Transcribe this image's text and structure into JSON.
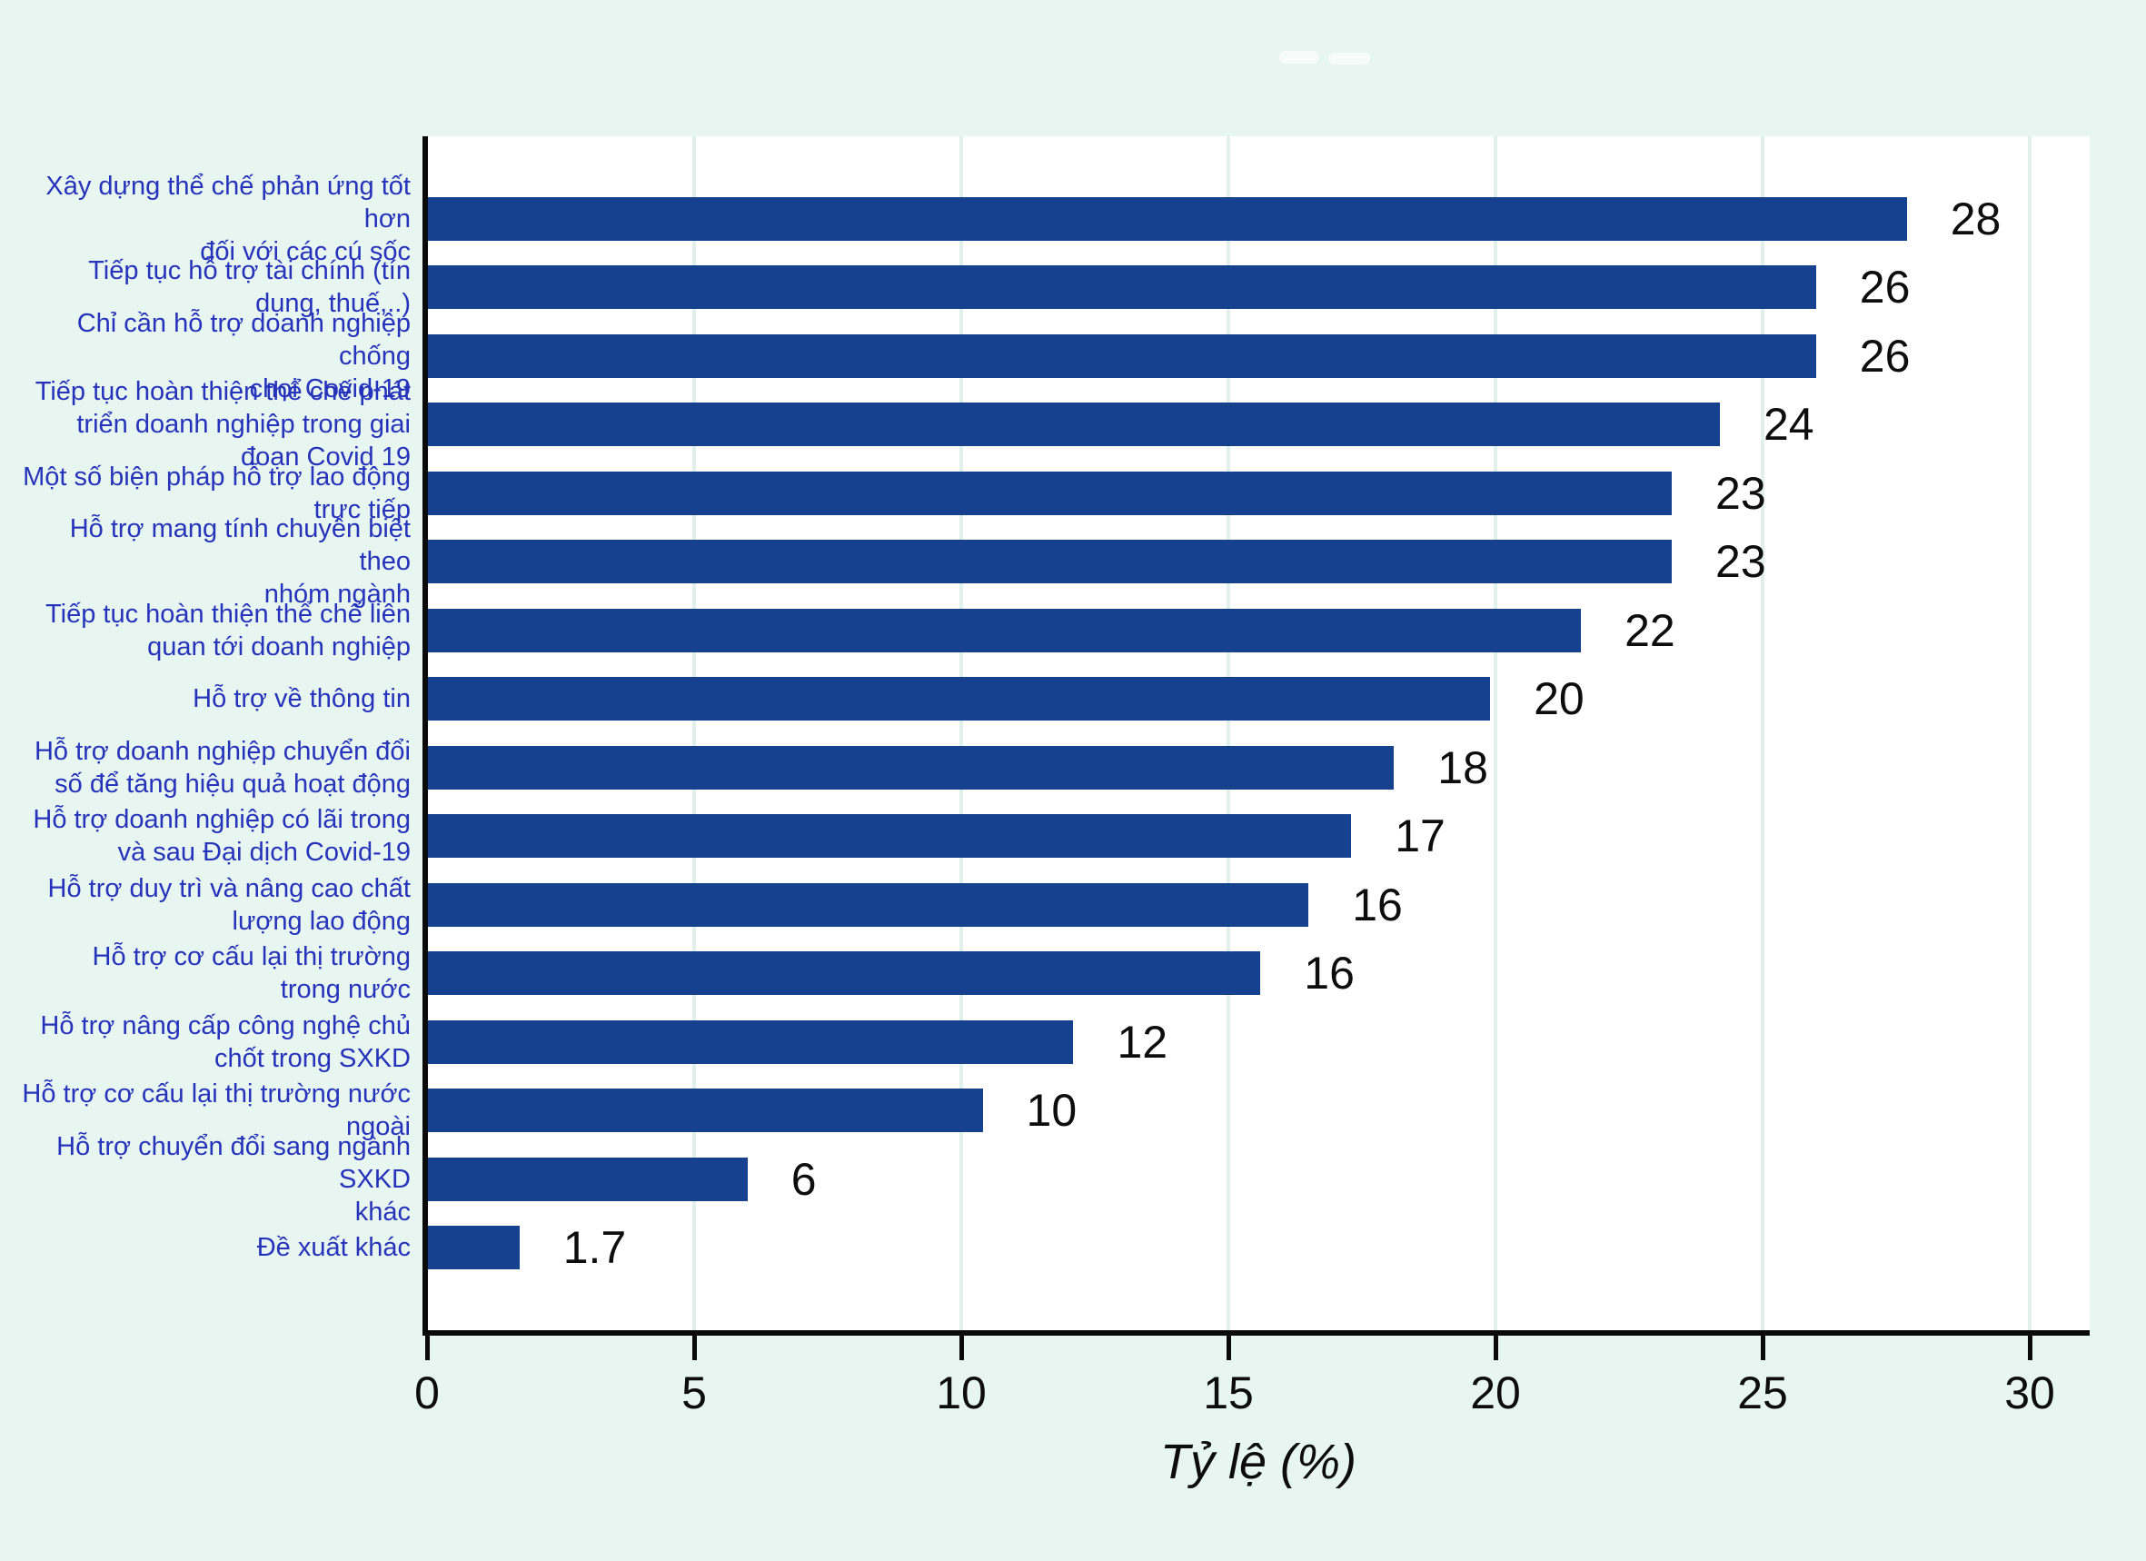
{
  "figure": {
    "background_color": "#e8f6f1",
    "plot_background_color": "#ffffff",
    "bar_color": "#16418f",
    "category_label_color": "#2633bb",
    "axis_color": "#0a0a0a",
    "gridline_color": "#e0f0ea"
  },
  "chart_data": {
    "type": "bar",
    "orientation": "horizontal",
    "title": "",
    "xlabel": "Tỷ lệ (%)",
    "ylabel": "",
    "xlim": [
      0,
      31
    ],
    "x_ticks": [
      "0",
      "5",
      "10",
      "15",
      "20",
      "25",
      "30"
    ],
    "grid": true,
    "legend": "none",
    "categories": [
      "Xây dựng thể chế phản ứng tốt hơn\nđối với các cú sốc",
      "Tiếp tục hỗ trợ tài chính (tín\ndụng, thuế,..)",
      "Chỉ cần hỗ trợ doanh nghiệp chống\nchọi Covid-19",
      "Tiếp tục hoàn thiện thể chế phát\ntriển doanh nghiệp trong giai\nđoạn Covid 19",
      "Một số biện pháp hỗ trợ lao động\ntrực tiếp",
      "Hỗ trợ mang tính chuyên biệt theo\nnhóm ngành",
      "Tiếp tục hoàn thiện thể chế liên\nquan tới doanh nghiệp",
      "Hỗ trợ về thông tin",
      "Hỗ trợ doanh nghiệp chuyển đổi\nsố để tăng hiệu quả hoạt động",
      "Hỗ trợ doanh nghiệp có lãi trong\nvà sau Đại dịch Covid-19",
      "Hỗ trợ duy trì và nâng cao chất\nlượng lao động",
      "Hỗ trợ cơ cấu lại thị trường\ntrong nước",
      "Hỗ trợ nâng cấp công nghệ chủ\nchốt trong SXKD",
      "Hỗ trợ cơ cấu lại thị trường nước\nngoài",
      "Hỗ trợ chuyển đổi sang ngành SXKD\nkhác",
      "Đề xuất khác"
    ],
    "values": [
      28,
      26,
      26,
      24,
      23,
      23,
      22,
      20,
      18,
      17,
      16,
      16,
      12,
      10,
      6,
      1.7
    ],
    "value_labels": [
      "28",
      "26",
      "26",
      "24",
      "23",
      "23",
      "22",
      "20",
      "18",
      "17",
      "16",
      "16",
      "12",
      "10",
      "6",
      "1.7"
    ],
    "bar_lengths": [
      27.7,
      26.0,
      26.0,
      24.2,
      23.3,
      23.3,
      21.6,
      19.9,
      18.1,
      17.3,
      16.5,
      15.6,
      12.1,
      10.4,
      6.0,
      1.73
    ]
  }
}
